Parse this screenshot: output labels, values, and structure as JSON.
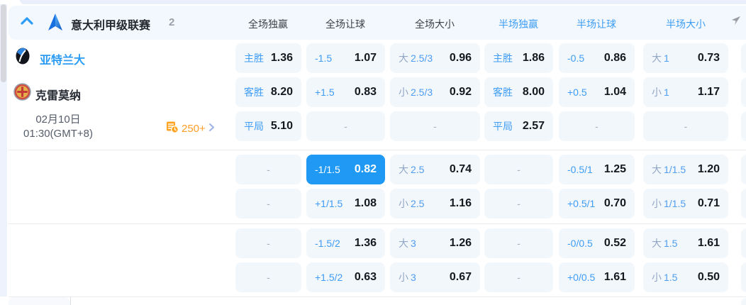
{
  "league": {
    "name": "意大利甲级联赛",
    "match_count": "2"
  },
  "column_headers": [
    {
      "label": "全场独赢"
    },
    {
      "label": "全场让球"
    },
    {
      "label": "全场大小"
    },
    {
      "label": "半场独赢"
    },
    {
      "label": "半场让球"
    },
    {
      "label": "半场大小"
    }
  ],
  "match": {
    "home_team": "亚特兰大",
    "away_team": "克雷莫纳",
    "date": "02月10日",
    "time": "01:30(GMT+8)",
    "markets_link": "250+"
  },
  "dash_char": "-",
  "colors": {
    "accent_blue": "#2099f4",
    "label_blue": "#3e9cf4",
    "muted_blue": "#92a6c6",
    "orange": "#ff9d24",
    "cell_bg": "#f2f7fc",
    "header_bg": "#f3f8fe"
  },
  "odds_rows": [
    {
      "cells": [
        {
          "type": "lv",
          "label": "主胜",
          "value": "1.36"
        },
        {
          "type": "lv",
          "label": "-1.5",
          "value": "1.07"
        },
        {
          "type": "ou",
          "ou": "大",
          "line": "2.5/3",
          "value": "0.96"
        },
        {
          "type": "lv",
          "label": "主胜",
          "value": "1.86"
        },
        {
          "type": "lv",
          "label": "-0.5",
          "value": "0.86"
        },
        {
          "type": "ou",
          "ou": "大",
          "line": "1",
          "value": "0.73"
        }
      ]
    },
    {
      "cells": [
        {
          "type": "lv",
          "label": "客胜",
          "value": "8.20"
        },
        {
          "type": "lv",
          "label": "+1.5",
          "value": "0.83"
        },
        {
          "type": "ou",
          "ou": "小",
          "line": "2.5/3",
          "value": "0.92"
        },
        {
          "type": "lv",
          "label": "客胜",
          "value": "8.00"
        },
        {
          "type": "lv",
          "label": "+0.5",
          "value": "1.04"
        },
        {
          "type": "ou",
          "ou": "小",
          "line": "1",
          "value": "1.17"
        }
      ]
    },
    {
      "cells": [
        {
          "type": "lv",
          "label": "平局",
          "value": "5.10"
        },
        {
          "type": "dash"
        },
        {
          "type": "dash"
        },
        {
          "type": "lv",
          "label": "平局",
          "value": "2.57"
        },
        {
          "type": "dash"
        },
        {
          "type": "dash"
        }
      ]
    },
    {
      "cells": [
        {
          "type": "dash"
        },
        {
          "type": "lv",
          "label": "-1/1.5",
          "value": "0.82",
          "highlight": true
        },
        {
          "type": "ou",
          "ou": "大",
          "line": "2.5",
          "value": "0.74"
        },
        {
          "type": "dash"
        },
        {
          "type": "lv",
          "label": "-0.5/1",
          "value": "1.25"
        },
        {
          "type": "ou",
          "ou": "大",
          "line": "1/1.5",
          "value": "1.20"
        }
      ]
    },
    {
      "cells": [
        {
          "type": "dash"
        },
        {
          "type": "lv",
          "label": "+1/1.5",
          "value": "1.08"
        },
        {
          "type": "ou",
          "ou": "小",
          "line": "2.5",
          "value": "1.16"
        },
        {
          "type": "dash"
        },
        {
          "type": "lv",
          "label": "+0.5/1",
          "value": "0.70"
        },
        {
          "type": "ou",
          "ou": "小",
          "line": "1/1.5",
          "value": "0.71"
        }
      ]
    },
    {
      "cells": [
        {
          "type": "dash"
        },
        {
          "type": "lv",
          "label": "-1.5/2",
          "value": "1.36"
        },
        {
          "type": "ou",
          "ou": "大",
          "line": "3",
          "value": "1.26"
        },
        {
          "type": "dash"
        },
        {
          "type": "lv",
          "label": "-0/0.5",
          "value": "0.52"
        },
        {
          "type": "ou",
          "ou": "大",
          "line": "1.5",
          "value": "1.61"
        }
      ]
    },
    {
      "cells": [
        {
          "type": "dash"
        },
        {
          "type": "lv",
          "label": "+1.5/2",
          "value": "0.63"
        },
        {
          "type": "ou",
          "ou": "小",
          "line": "3",
          "value": "0.67"
        },
        {
          "type": "dash"
        },
        {
          "type": "lv",
          "label": "+0/0.5",
          "value": "1.61"
        },
        {
          "type": "ou",
          "ou": "小",
          "line": "1.5",
          "value": "0.50"
        }
      ]
    }
  ]
}
